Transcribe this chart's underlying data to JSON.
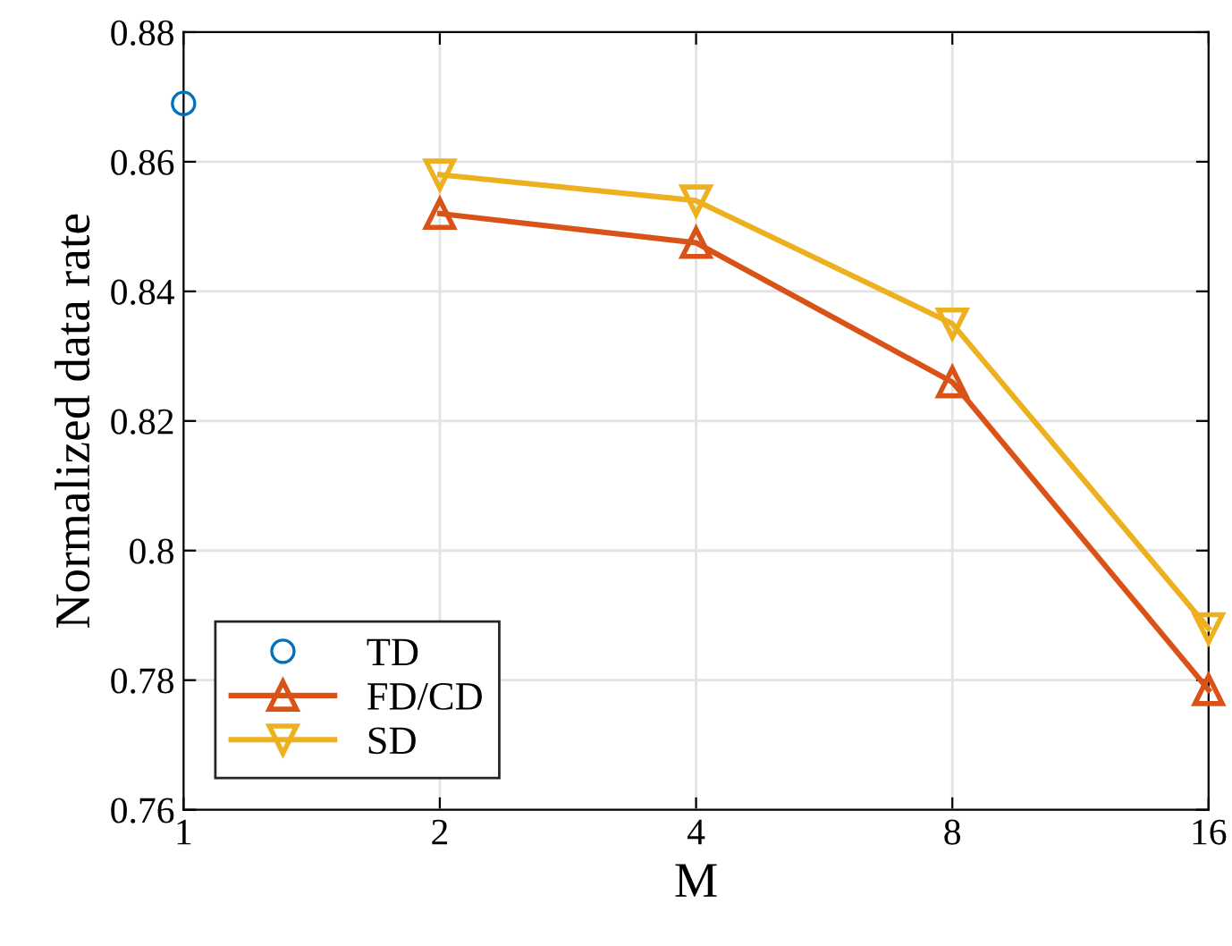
{
  "chart_data": {
    "type": "line",
    "xlabel": "M",
    "ylabel": "Normalized data rate",
    "log": "x",
    "xlim": [
      1,
      16
    ],
    "xticks": [
      1,
      2,
      4,
      8,
      16
    ],
    "ylim": [
      0.76,
      0.88
    ],
    "yticks": [
      0.76,
      0.78,
      0.8,
      0.82,
      0.84,
      0.86,
      0.88
    ],
    "grid": true,
    "legend": "bottom left",
    "series": [
      {
        "name": "TD",
        "type": "scatter",
        "marker": "circle",
        "color": "#0072bd",
        "x": [
          1
        ],
        "values": [
          0.869
        ]
      },
      {
        "name": "FD/CD",
        "marker": "triangle",
        "color": "#d95319",
        "x": [
          2,
          4,
          8,
          16
        ],
        "values": [
          0.852,
          0.8475,
          0.826,
          0.7785
        ]
      },
      {
        "name": "SD",
        "marker": "triangle_down",
        "color": "#edb120",
        "x": [
          2,
          4,
          8,
          16
        ],
        "values": [
          0.858,
          0.854,
          0.835,
          0.788
        ]
      }
    ]
  }
}
